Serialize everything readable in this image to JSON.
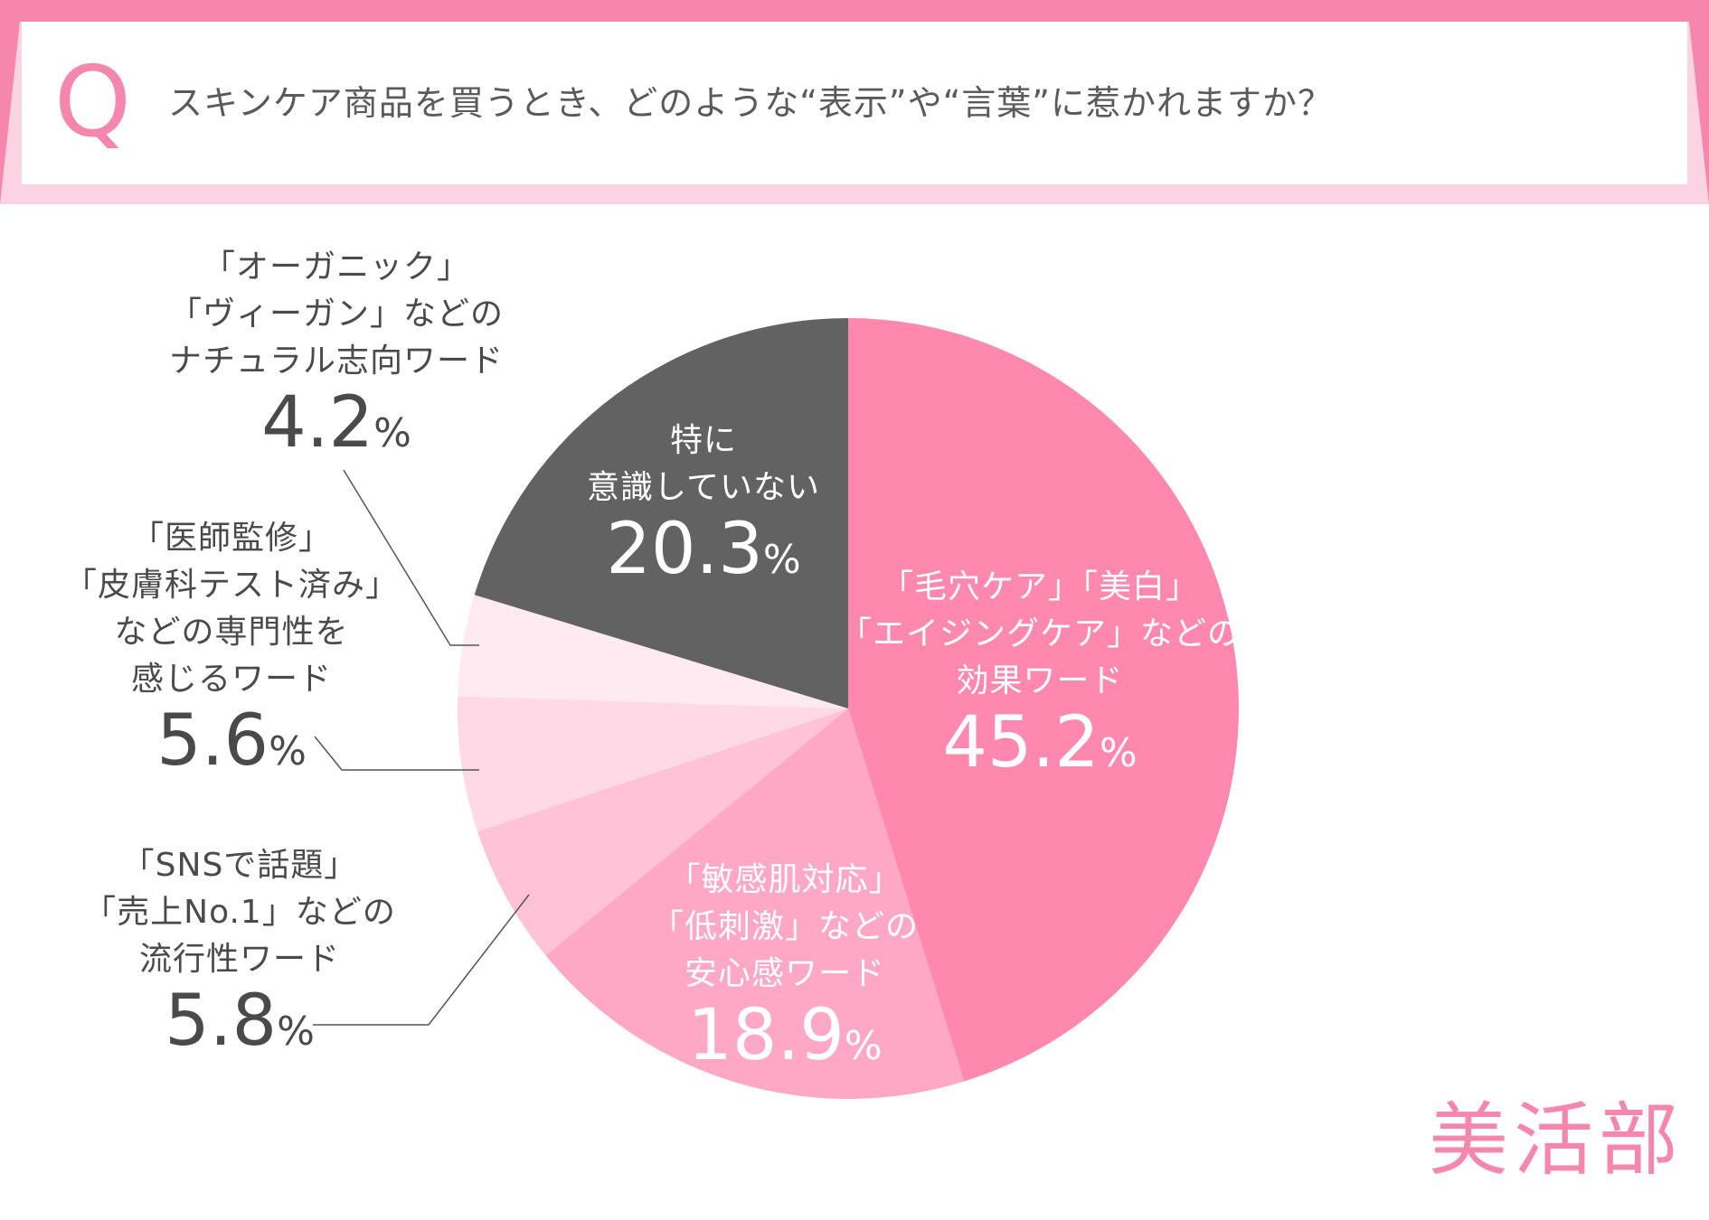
{
  "header": {
    "q_mark": "Q",
    "question": "スキンケア商品を買うとき、どのような“表示”や“言葉”に惹かれますか？"
  },
  "chart_data": {
    "type": "pie",
    "title": "スキンケア商品を買うとき、どのような“表示”や“言葉”に惹かれますか？",
    "unit": "%",
    "slices": [
      {
        "lines": [
          "「毛穴ケア」「美白」",
          "「エイジングケア」などの",
          "効果ワード"
        ],
        "value": 45.2,
        "value_label": "45.2",
        "color": "#ff88ae"
      },
      {
        "lines": [
          "「敏感肌対応」",
          "「低刺激」などの",
          "安心感ワード"
        ],
        "value": 18.9,
        "value_label": "18.9",
        "color": "#ffa8c6"
      },
      {
        "lines": [
          "「SNSで話題」",
          "「売上No.1」などの",
          "流行性ワード"
        ],
        "value": 5.8,
        "value_label": "5.8",
        "color": "#ffc2d6"
      },
      {
        "lines": [
          "「医師監修」",
          "「皮膚科テスト済み」",
          "などの専門性を",
          "感じるワード"
        ],
        "value": 5.6,
        "value_label": "5.6",
        "color": "#ffd9e5"
      },
      {
        "lines": [
          "「オーガニック」",
          "「ヴィーガン」などの",
          "ナチュラル志向ワード"
        ],
        "value": 4.2,
        "value_label": "4.2",
        "color": "#ffeaf1"
      },
      {
        "lines": [
          "特に",
          "意識していない"
        ],
        "value": 20.3,
        "value_label": "20.3",
        "color": "#626262"
      }
    ]
  },
  "brand": {
    "logo_text": "美活部"
  }
}
